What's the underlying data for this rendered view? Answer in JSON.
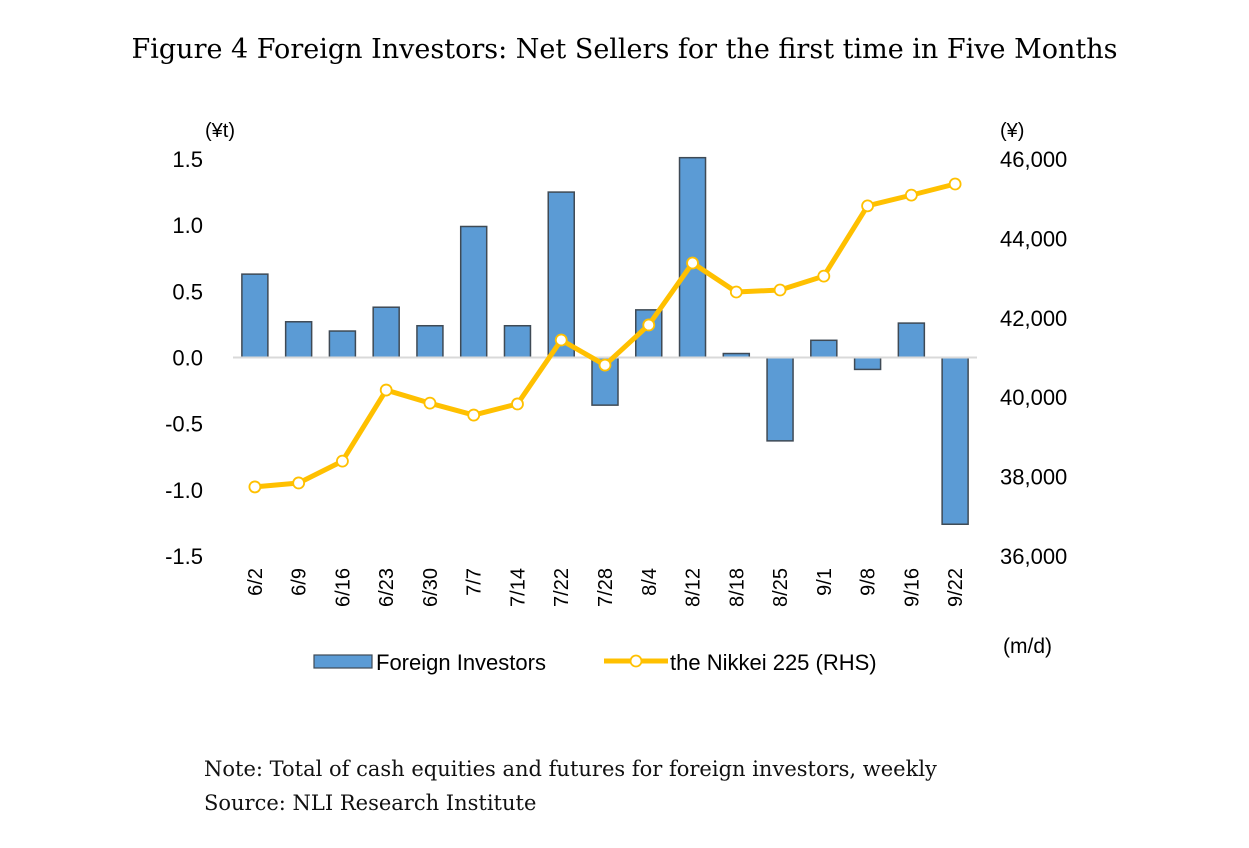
{
  "title": "Figure 4 Foreign Investors: Net Sellers for the first time in Five Months",
  "note": "Note: Total of cash equities and futures for foreign investors, weekly",
  "source": "Source: NLI Research Institute",
  "chart_data": {
    "type": "bar+line",
    "title": "Figure 4 Foreign Investors: Net Sellers for the first time in Five Months",
    "xlabel": "(m/d)",
    "ylabel": "(¥t)",
    "y2label": "(¥)",
    "ylim": [
      -1.5,
      1.5
    ],
    "yticks": [
      "1.5",
      "1.0",
      "0.5",
      "0.0",
      "-0.5",
      "-1.0",
      "-1.5"
    ],
    "y2lim": [
      36000,
      46000
    ],
    "y2ticks": [
      "46,000",
      "44,000",
      "42,000",
      "40,000",
      "38,000",
      "36,000"
    ],
    "categories": [
      "6/2",
      "6/9",
      "6/16",
      "6/23",
      "6/30",
      "7/7",
      "7/14",
      "7/22",
      "7/28",
      "8/4",
      "8/12",
      "8/18",
      "8/25",
      "9/1",
      "9/8",
      "9/16",
      "9/22"
    ],
    "series": [
      {
        "name": "Foreign Investors",
        "type": "bar",
        "axis": "left",
        "color": "#5b9bd5",
        "values": [
          0.63,
          0.27,
          0.2,
          0.38,
          0.24,
          0.99,
          0.24,
          1.25,
          -0.36,
          0.36,
          1.51,
          0.03,
          -0.63,
          0.13,
          -0.09,
          0.26,
          -1.26
        ]
      },
      {
        "name": "the Nikkei 225 (RHS)",
        "type": "line",
        "axis": "right",
        "color": "#ffc000",
        "values": [
          37740,
          37840,
          38390,
          40180,
          39850,
          39550,
          39830,
          41440,
          40810,
          41820,
          43380,
          42650,
          42700,
          43050,
          44820,
          45090,
          45370
        ]
      }
    ],
    "legend": "bottom",
    "grid": false
  }
}
